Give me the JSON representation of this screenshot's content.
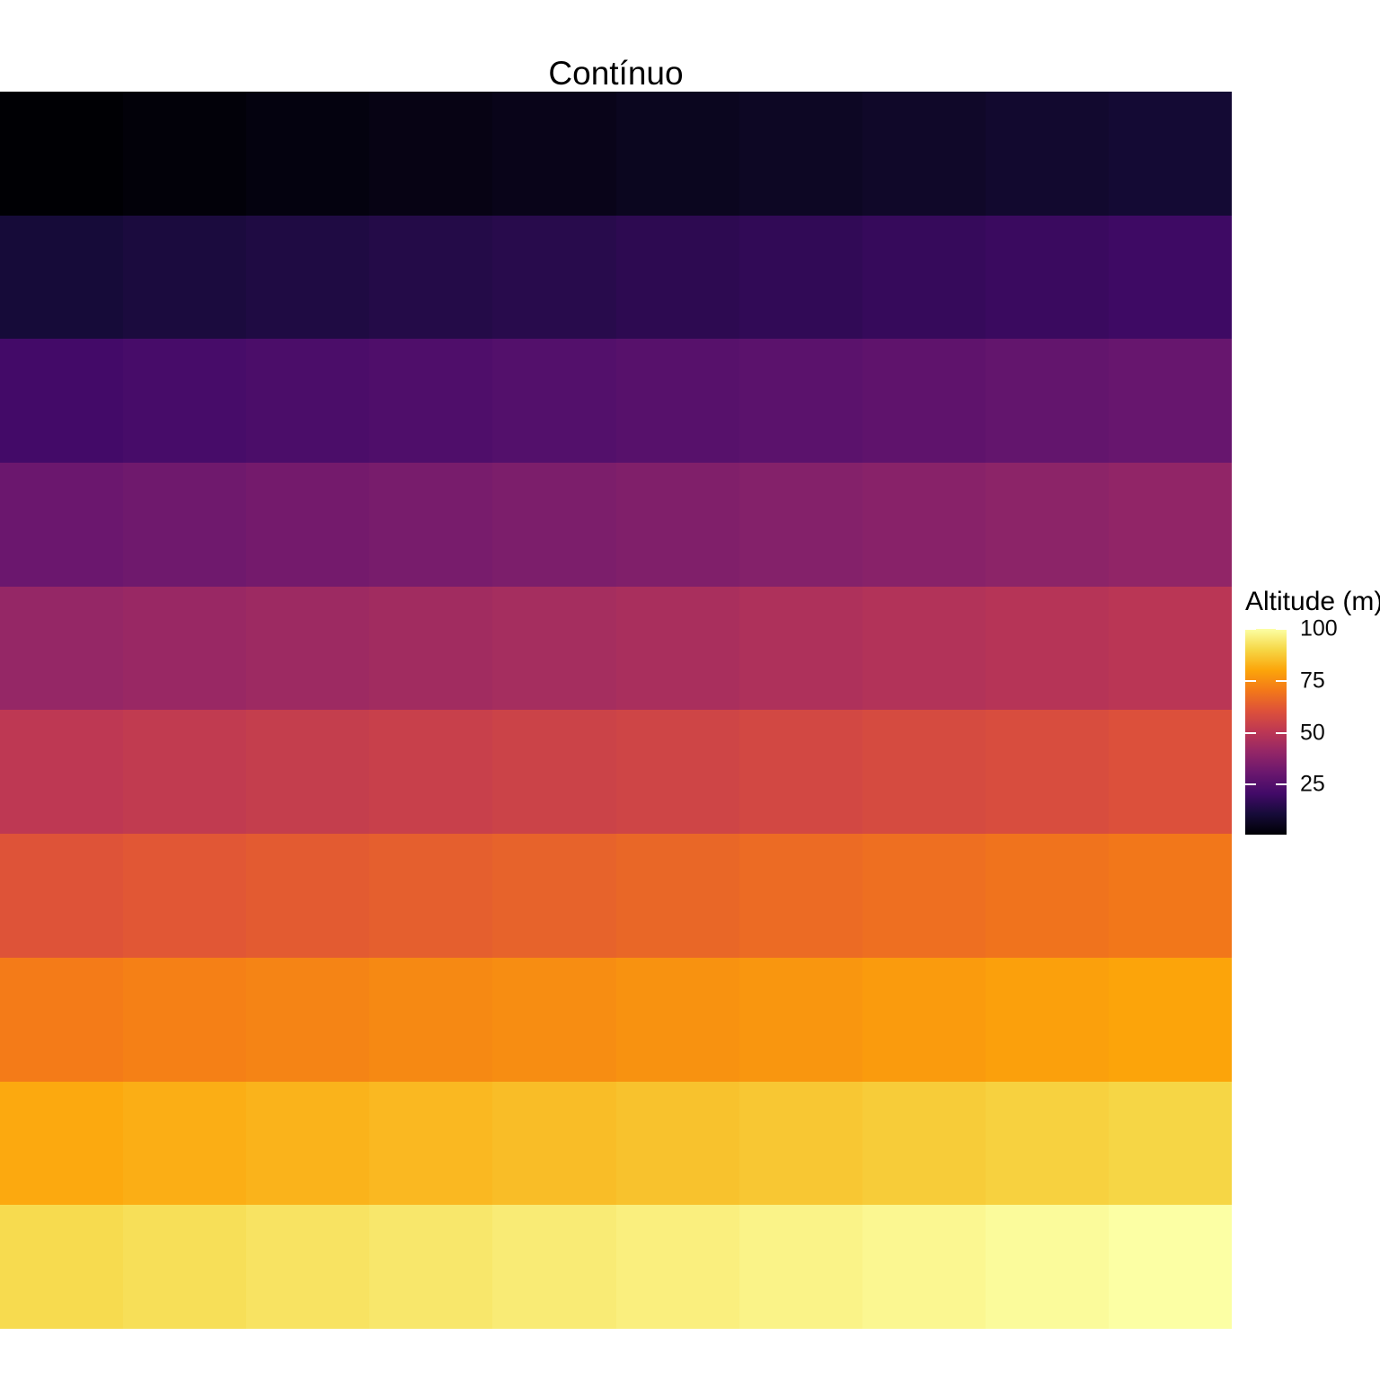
{
  "title": "Contínuo",
  "legend": {
    "title": "Altitude (m)",
    "ticks": [
      100,
      75,
      50,
      25
    ]
  },
  "chart_data": {
    "type": "heatmap",
    "title": "Contínuo",
    "xlabel": "",
    "ylabel": "",
    "grid": "off",
    "axes_text": "none",
    "legend_title": "Altitude (m)",
    "legend_position": "right",
    "legend_ticks": [
      25,
      50,
      75,
      100
    ],
    "colormap": "inferno",
    "value_range": [
      1,
      100
    ],
    "rows": 10,
    "cols": 10,
    "orientation": "values increase left-to-right within a row, rows increase top-to-bottom",
    "values": [
      [
        1,
        2,
        3,
        4,
        5,
        6,
        7,
        8,
        9,
        10
      ],
      [
        11,
        12,
        13,
        14,
        15,
        16,
        17,
        18,
        19,
        20
      ],
      [
        21,
        22,
        23,
        24,
        25,
        26,
        27,
        28,
        29,
        30
      ],
      [
        31,
        32,
        33,
        34,
        35,
        36,
        37,
        38,
        39,
        40
      ],
      [
        41,
        42,
        43,
        44,
        45,
        46,
        47,
        48,
        49,
        50
      ],
      [
        51,
        52,
        53,
        54,
        55,
        56,
        57,
        58,
        59,
        60
      ],
      [
        61,
        62,
        63,
        64,
        65,
        66,
        67,
        68,
        69,
        70
      ],
      [
        71,
        72,
        73,
        74,
        75,
        76,
        77,
        78,
        79,
        80
      ],
      [
        81,
        82,
        83,
        84,
        85,
        86,
        87,
        88,
        89,
        90
      ],
      [
        91,
        92,
        93,
        94,
        95,
        96,
        97,
        98,
        99,
        100
      ]
    ],
    "colormap_stops": [
      {
        "t": 0.0,
        "color": "#000004"
      },
      {
        "t": 0.1,
        "color": "#160B39"
      },
      {
        "t": 0.2,
        "color": "#420A68"
      },
      {
        "t": 0.3,
        "color": "#6A176E"
      },
      {
        "t": 0.4,
        "color": "#932667"
      },
      {
        "t": 0.5,
        "color": "#BC3754"
      },
      {
        "t": 0.6,
        "color": "#DD513A"
      },
      {
        "t": 0.7,
        "color": "#F37819"
      },
      {
        "t": 0.8,
        "color": "#FCA50A"
      },
      {
        "t": 0.9,
        "color": "#F6D746"
      },
      {
        "t": 1.0,
        "color": "#FCFFA4"
      }
    ],
    "tick_mark_color": "#FFFFFF"
  }
}
